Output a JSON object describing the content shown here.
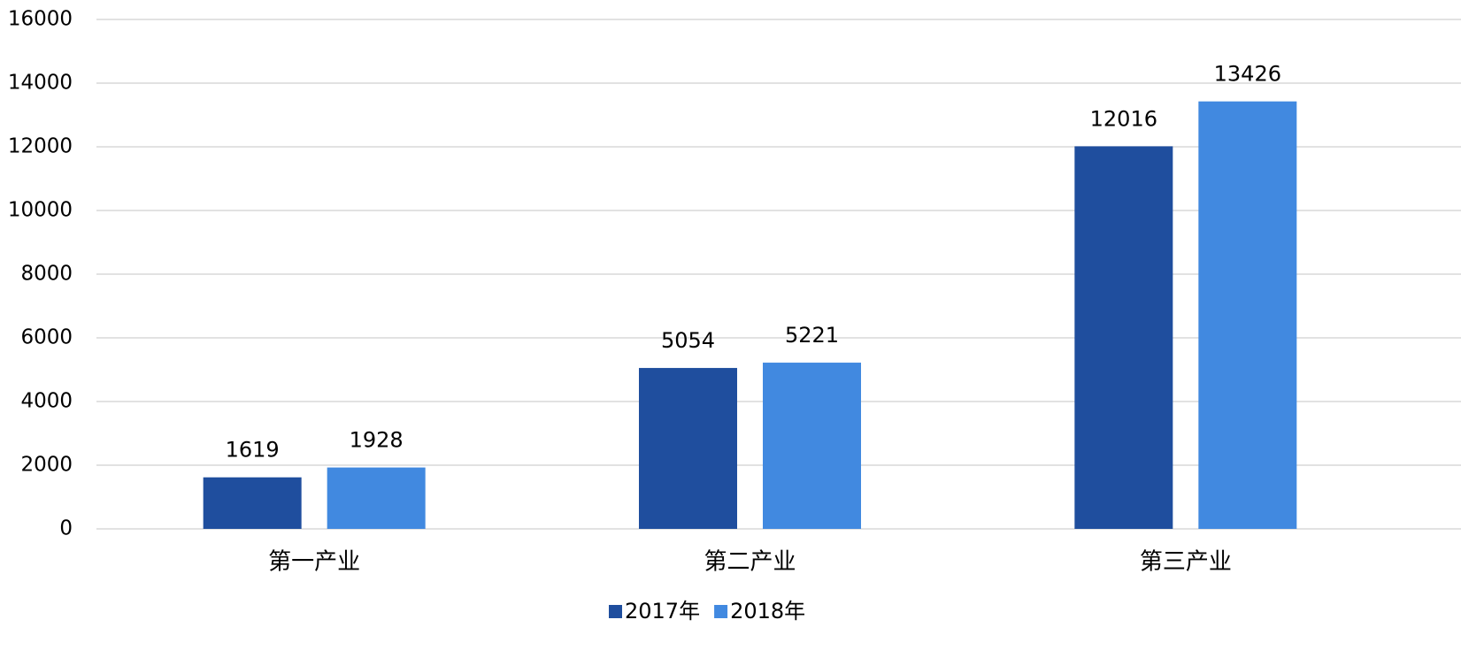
{
  "chart_data": {
    "type": "bar",
    "categories": [
      "第一产业",
      "第二产业",
      "第三产业"
    ],
    "series": [
      {
        "name": "2017年",
        "color": "#1f4e9e",
        "values": [
          1619,
          5054,
          12016
        ]
      },
      {
        "name": "2018年",
        "color": "#4189e0",
        "values": [
          1928,
          5221,
          13426
        ]
      }
    ],
    "ylim": [
      0,
      16000
    ],
    "yticks": [
      0,
      2000,
      4000,
      6000,
      8000,
      10000,
      12000,
      14000,
      16000
    ],
    "grid": true,
    "legend": "bottom"
  }
}
